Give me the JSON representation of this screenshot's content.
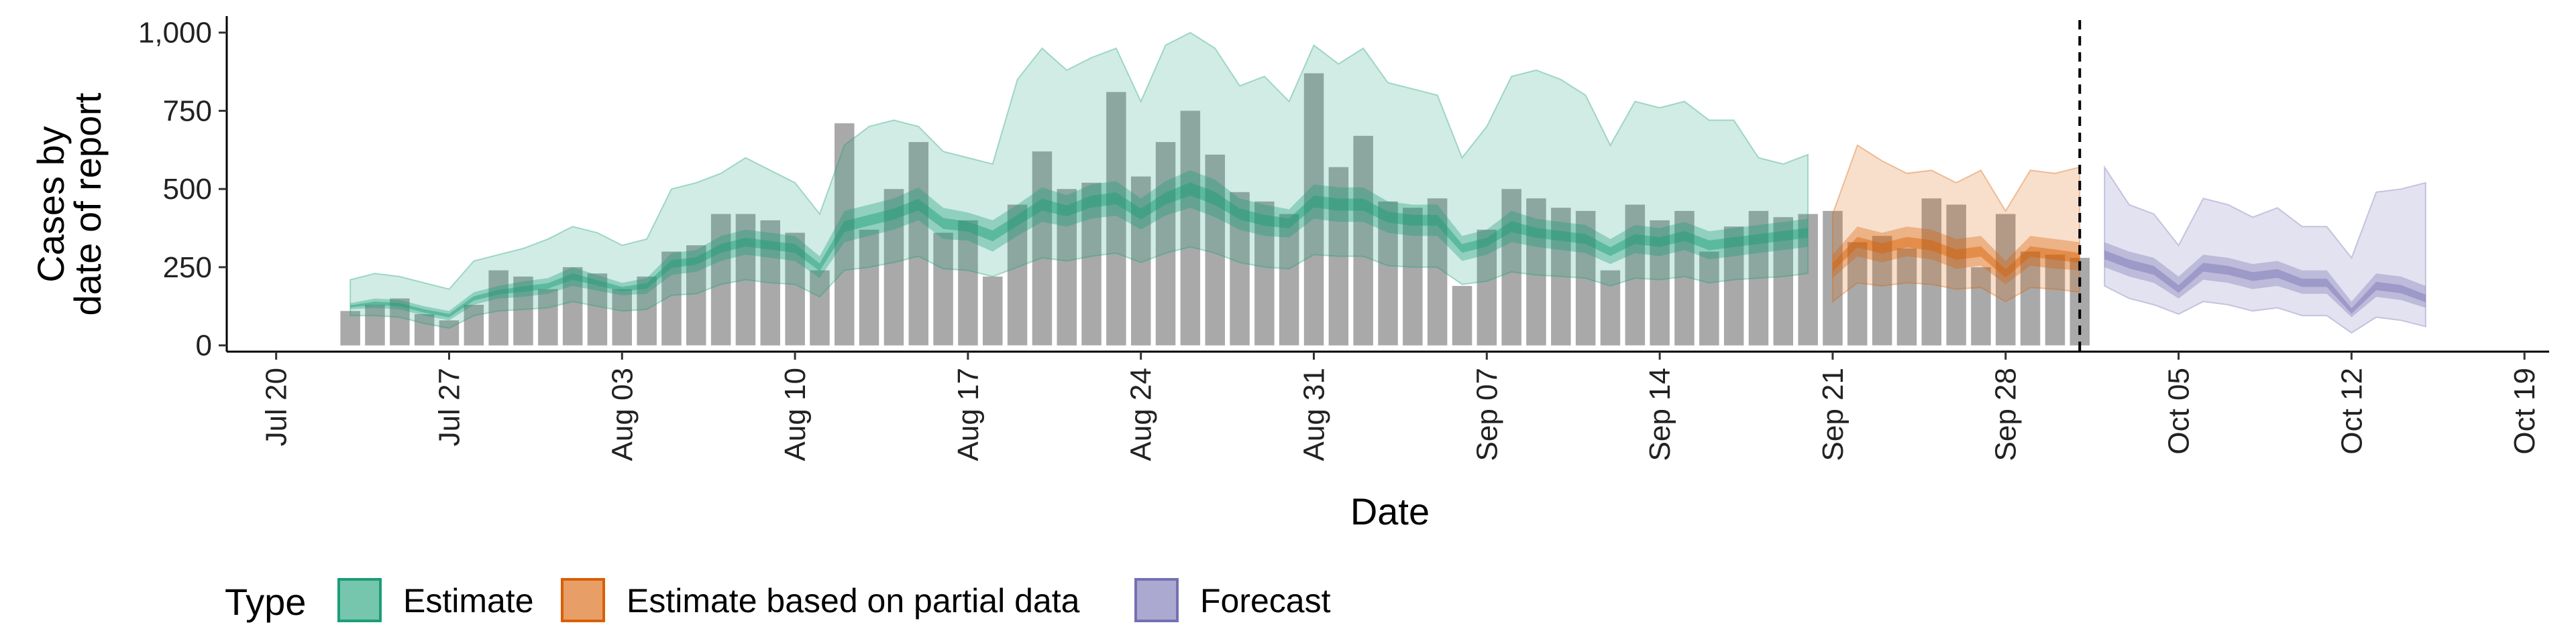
{
  "chart_data": {
    "type": "bar",
    "xlabel": "Date",
    "ylabel_lines": [
      "Cases by",
      "date of report"
    ],
    "ylim": [
      -20,
      1040
    ],
    "y_ticks": [
      0,
      250,
      500,
      750,
      1000
    ],
    "y_tick_labels": [
      "0",
      "250",
      "500",
      "750",
      "1,000"
    ],
    "x_ticks": [
      "2020-07-20",
      "2020-07-27",
      "2020-08-03",
      "2020-08-10",
      "2020-08-17",
      "2020-08-24",
      "2020-08-31",
      "2020-09-07",
      "2020-09-14",
      "2020-09-21",
      "2020-09-28",
      "2020-10-05",
      "2020-10-12",
      "2020-10-19"
    ],
    "x_tick_labels": [
      "Jul 20",
      "Jul 27",
      "Aug 03",
      "Aug 10",
      "Aug 17",
      "Aug 24",
      "Aug 31",
      "Sep 07",
      "Sep 14",
      "Sep 21",
      "Sep 28",
      "Oct 05",
      "Oct 12",
      "Oct 19"
    ],
    "x_range": [
      "2020-07-18",
      "2020-10-20"
    ],
    "forecast_cutoff": "2020-10-01",
    "grid": false,
    "legend": {
      "title": "Type",
      "position": "bottom",
      "items": [
        {
          "label": "Estimate",
          "color": "#1b9e77"
        },
        {
          "label": "Estimate based on partial data",
          "color": "#d95f02"
        },
        {
          "label": "Forecast",
          "color": "#7570b3"
        }
      ]
    },
    "bar_color": "#a9a9a9",
    "bars": {
      "start_date": "2020-07-23",
      "values": [
        110,
        130,
        150,
        100,
        80,
        130,
        240,
        220,
        180,
        250,
        230,
        180,
        220,
        300,
        320,
        420,
        420,
        400,
        360,
        240,
        710,
        370,
        500,
        650,
        360,
        400,
        220,
        450,
        620,
        500,
        520,
        810,
        540,
        650,
        750,
        610,
        490,
        460,
        420,
        870,
        570,
        670,
        460,
        440,
        470,
        190,
        370,
        500,
        470,
        440,
        430,
        240,
        450,
        400,
        430,
        300,
        380,
        430,
        410,
        420,
        430,
        330,
        350,
        310,
        470,
        450,
        250,
        420,
        300,
        290,
        280
      ],
      "dates": [
        "2020-07-23",
        "2020-07-24",
        "2020-07-25",
        "2020-07-26",
        "2020-07-27",
        "2020-07-28",
        "2020-07-29",
        "2020-07-30",
        "2020-07-31",
        "2020-08-01",
        "2020-08-02",
        "2020-08-03",
        "2020-08-04",
        "2020-08-05",
        "2020-08-06",
        "2020-08-07",
        "2020-08-08",
        "2020-08-09",
        "2020-08-10",
        "2020-08-11",
        "2020-08-12",
        "2020-08-13",
        "2020-08-14",
        "2020-08-15",
        "2020-08-16",
        "2020-08-17",
        "2020-08-18",
        "2020-08-19",
        "2020-08-20",
        "2020-08-21",
        "2020-08-22",
        "2020-08-23",
        "2020-08-24",
        "2020-08-25",
        "2020-08-26",
        "2020-08-27",
        "2020-08-28",
        "2020-08-29",
        "2020-08-30",
        "2020-08-31",
        "2020-09-01",
        "2020-09-02",
        "2020-09-03",
        "2020-09-04",
        "2020-09-05",
        "2020-09-06",
        "2020-09-07",
        "2020-09-08",
        "2020-09-09",
        "2020-09-10",
        "2020-09-11",
        "2020-09-12",
        "2020-09-13",
        "2020-09-14",
        "2020-09-15",
        "2020-09-16",
        "2020-09-17",
        "2020-09-18",
        "2020-09-19",
        "2020-09-20",
        "2020-09-21",
        "2020-09-22",
        "2020-09-23",
        "2020-09-24",
        "2020-09-25",
        "2020-09-26",
        "2020-09-27",
        "2020-09-28",
        "2020-09-29",
        "2020-09-30",
        "2020-10-01"
      ]
    },
    "series": [
      {
        "name": "Estimate",
        "color": "#1b9e77",
        "dates": [
          "2020-07-23",
          "2020-07-24",
          "2020-07-25",
          "2020-07-26",
          "2020-07-27",
          "2020-07-28",
          "2020-07-29",
          "2020-07-30",
          "2020-07-31",
          "2020-08-01",
          "2020-08-02",
          "2020-08-03",
          "2020-08-04",
          "2020-08-05",
          "2020-08-06",
          "2020-08-07",
          "2020-08-08",
          "2020-08-09",
          "2020-08-10",
          "2020-08-11",
          "2020-08-12",
          "2020-08-13",
          "2020-08-14",
          "2020-08-15",
          "2020-08-16",
          "2020-08-17",
          "2020-08-18",
          "2020-08-19",
          "2020-08-20",
          "2020-08-21",
          "2020-08-22",
          "2020-08-23",
          "2020-08-24",
          "2020-08-25",
          "2020-08-26",
          "2020-08-27",
          "2020-08-28",
          "2020-08-29",
          "2020-08-30",
          "2020-08-31",
          "2020-09-01",
          "2020-09-02",
          "2020-09-03",
          "2020-09-04",
          "2020-09-05",
          "2020-09-06",
          "2020-09-07",
          "2020-09-08",
          "2020-09-09",
          "2020-09-10",
          "2020-09-11",
          "2020-09-12",
          "2020-09-13",
          "2020-09-14",
          "2020-09-15",
          "2020-09-16",
          "2020-09-17",
          "2020-09-18",
          "2020-09-19",
          "2020-09-20"
        ],
        "median": [
          125,
          135,
          130,
          110,
          95,
          150,
          170,
          180,
          190,
          220,
          200,
          180,
          190,
          260,
          270,
          310,
          330,
          320,
          310,
          250,
          380,
          400,
          420,
          450,
          390,
          380,
          350,
          400,
          450,
          430,
          460,
          470,
          420,
          470,
          500,
          470,
          420,
          400,
          390,
          460,
          450,
          450,
          410,
          400,
          400,
          310,
          330,
          380,
          360,
          350,
          340,
          300,
          340,
          330,
          350,
          320,
          330,
          340,
          350,
          360
        ],
        "lo50": [
          115,
          120,
          115,
          95,
          80,
          130,
          150,
          155,
          165,
          190,
          175,
          160,
          165,
          225,
          235,
          270,
          290,
          280,
          270,
          215,
          330,
          350,
          370,
          400,
          340,
          335,
          300,
          350,
          395,
          380,
          405,
          415,
          370,
          415,
          440,
          410,
          370,
          350,
          345,
          405,
          395,
          395,
          360,
          350,
          350,
          270,
          290,
          330,
          315,
          305,
          295,
          260,
          295,
          285,
          305,
          275,
          285,
          295,
          305,
          315
        ],
        "hi50": [
          135,
          150,
          145,
          125,
          110,
          170,
          190,
          205,
          215,
          250,
          225,
          200,
          215,
          295,
          305,
          350,
          370,
          360,
          350,
          285,
          430,
          450,
          470,
          505,
          440,
          425,
          400,
          450,
          505,
          480,
          515,
          525,
          470,
          525,
          560,
          530,
          470,
          450,
          435,
          515,
          505,
          505,
          460,
          450,
          450,
          350,
          370,
          430,
          405,
          395,
          385,
          340,
          385,
          375,
          395,
          365,
          375,
          385,
          395,
          405
        ],
        "lo90": [
          95,
          95,
          90,
          70,
          55,
          95,
          110,
          115,
          120,
          140,
          125,
          110,
          115,
          160,
          165,
          195,
          210,
          200,
          195,
          155,
          240,
          250,
          265,
          285,
          245,
          240,
          220,
          250,
          280,
          270,
          285,
          295,
          265,
          295,
          315,
          295,
          265,
          250,
          245,
          290,
          285,
          285,
          255,
          250,
          250,
          195,
          205,
          235,
          225,
          220,
          215,
          190,
          215,
          210,
          220,
          200,
          210,
          215,
          220,
          230
        ],
        "hi90": [
          210,
          230,
          220,
          200,
          180,
          270,
          290,
          310,
          340,
          380,
          360,
          320,
          340,
          500,
          520,
          550,
          600,
          560,
          520,
          420,
          640,
          700,
          720,
          700,
          620,
          600,
          580,
          850,
          950,
          880,
          920,
          950,
          780,
          960,
          1000,
          950,
          830,
          860,
          780,
          960,
          900,
          950,
          840,
          820,
          800,
          600,
          700,
          860,
          880,
          850,
          800,
          640,
          780,
          760,
          780,
          720,
          720,
          600,
          580,
          610
        ]
      },
      {
        "name": "Estimate based on partial data",
        "color": "#d95f02",
        "dates": [
          "2020-09-21",
          "2020-09-22",
          "2020-09-23",
          "2020-09-24",
          "2020-09-25",
          "2020-09-26",
          "2020-09-27",
          "2020-09-28",
          "2020-09-29",
          "2020-09-30",
          "2020-10-01"
        ],
        "median": [
          250,
          330,
          310,
          330,
          320,
          290,
          300,
          230,
          300,
          290,
          280
        ],
        "lo50": [
          215,
          285,
          265,
          285,
          275,
          245,
          255,
          195,
          255,
          245,
          240
        ],
        "hi50": [
          290,
          380,
          360,
          380,
          370,
          340,
          350,
          270,
          350,
          340,
          330
        ],
        "lo90": [
          140,
          200,
          190,
          200,
          195,
          180,
          185,
          140,
          185,
          180,
          170
        ],
        "hi90": [
          420,
          640,
          590,
          550,
          560,
          520,
          560,
          430,
          560,
          550,
          570
        ]
      },
      {
        "name": "Forecast",
        "color": "#7570b3",
        "dates": [
          "2020-10-02",
          "2020-10-03",
          "2020-10-04",
          "2020-10-05",
          "2020-10-06",
          "2020-10-07",
          "2020-10-08",
          "2020-10-09",
          "2020-10-10",
          "2020-10-11",
          "2020-10-12",
          "2020-10-13",
          "2020-10-14",
          "2020-10-15"
        ],
        "median": [
          290,
          260,
          240,
          180,
          250,
          240,
          220,
          230,
          200,
          200,
          110,
          190,
          180,
          150
        ],
        "lo50": [
          250,
          220,
          200,
          150,
          210,
          200,
          180,
          190,
          165,
          165,
          90,
          155,
          145,
          120
        ],
        "hi50": [
          330,
          300,
          280,
          220,
          290,
          280,
          260,
          270,
          240,
          240,
          140,
          230,
          220,
          190
        ],
        "lo90": [
          190,
          150,
          130,
          100,
          140,
          130,
          110,
          120,
          95,
          95,
          40,
          90,
          80,
          60
        ],
        "hi90": [
          570,
          450,
          420,
          320,
          470,
          450,
          410,
          440,
          380,
          380,
          280,
          490,
          500,
          520
        ]
      }
    ]
  }
}
